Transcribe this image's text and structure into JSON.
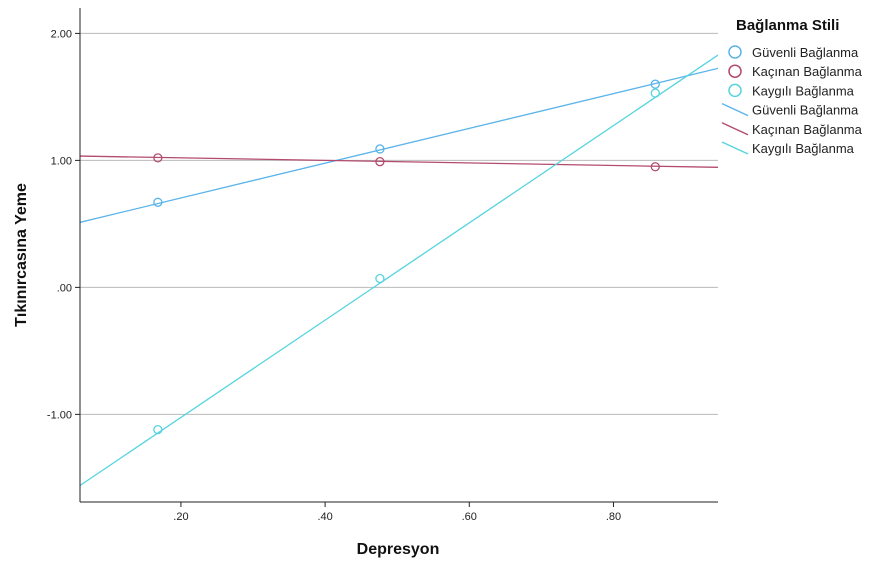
{
  "chart_data": {
    "type": "scatter",
    "title": "",
    "xlabel": "Depresyon",
    "ylabel": "Tıkınırcasına Yeme",
    "xlim": [
      0.06,
      0.945
    ],
    "ylim": [
      -1.69,
      2.2
    ],
    "x_ticks": [
      {
        "value": 0.2,
        "label": ".20"
      },
      {
        "value": 0.4,
        "label": ".40"
      },
      {
        "value": 0.6,
        "label": ".60"
      },
      {
        "value": 0.8,
        "label": ".80"
      }
    ],
    "y_ticks": [
      {
        "value": 2.0,
        "label": "2.00"
      },
      {
        "value": 1.0,
        "label": "1.00"
      },
      {
        "value": 0.0,
        "label": ".00"
      },
      {
        "value": -1.0,
        "label": "-1.00"
      }
    ],
    "grid": "horizontal",
    "legend_title": "Bağlanma Stili",
    "legend_position": "right",
    "series": [
      {
        "name": "Güvenli Bağlanma",
        "color": "#5ab4ea",
        "points": [
          [
            0.168,
            0.67
          ],
          [
            0.476,
            1.09
          ],
          [
            0.858,
            1.6
          ]
        ],
        "fit": {
          "intercept": 0.43,
          "slope": 1.37
        }
      },
      {
        "name": "Kaçınan Bağlanma",
        "color": "#b34b6e",
        "points": [
          [
            0.168,
            1.02
          ],
          [
            0.476,
            0.99
          ],
          [
            0.858,
            0.95
          ]
        ],
        "fit": {
          "intercept": 1.04,
          "slope": -0.1
        }
      },
      {
        "name": "Kaygılı Bağlanma",
        "color": "#55d4df",
        "points": [
          [
            0.168,
            -1.12
          ],
          [
            0.476,
            0.07
          ],
          [
            0.858,
            1.53
          ]
        ],
        "fit": {
          "intercept": -1.79,
          "slope": 3.83
        }
      }
    ],
    "legend_entries": [
      {
        "label": "Güvenli Bağlanma",
        "kind": "marker",
        "series": 0
      },
      {
        "label": "Kaçınan Bağlanma",
        "kind": "marker",
        "series": 1
      },
      {
        "label": "Kaygılı Bağlanma",
        "kind": "marker",
        "series": 2
      },
      {
        "label": "Güvenli Bağlanma",
        "kind": "line",
        "series": 0
      },
      {
        "label": "Kaçınan Bağlanma",
        "kind": "line",
        "series": 1
      },
      {
        "label": "Kaygılı Bağlanma",
        "kind": "line",
        "series": 2
      }
    ]
  }
}
